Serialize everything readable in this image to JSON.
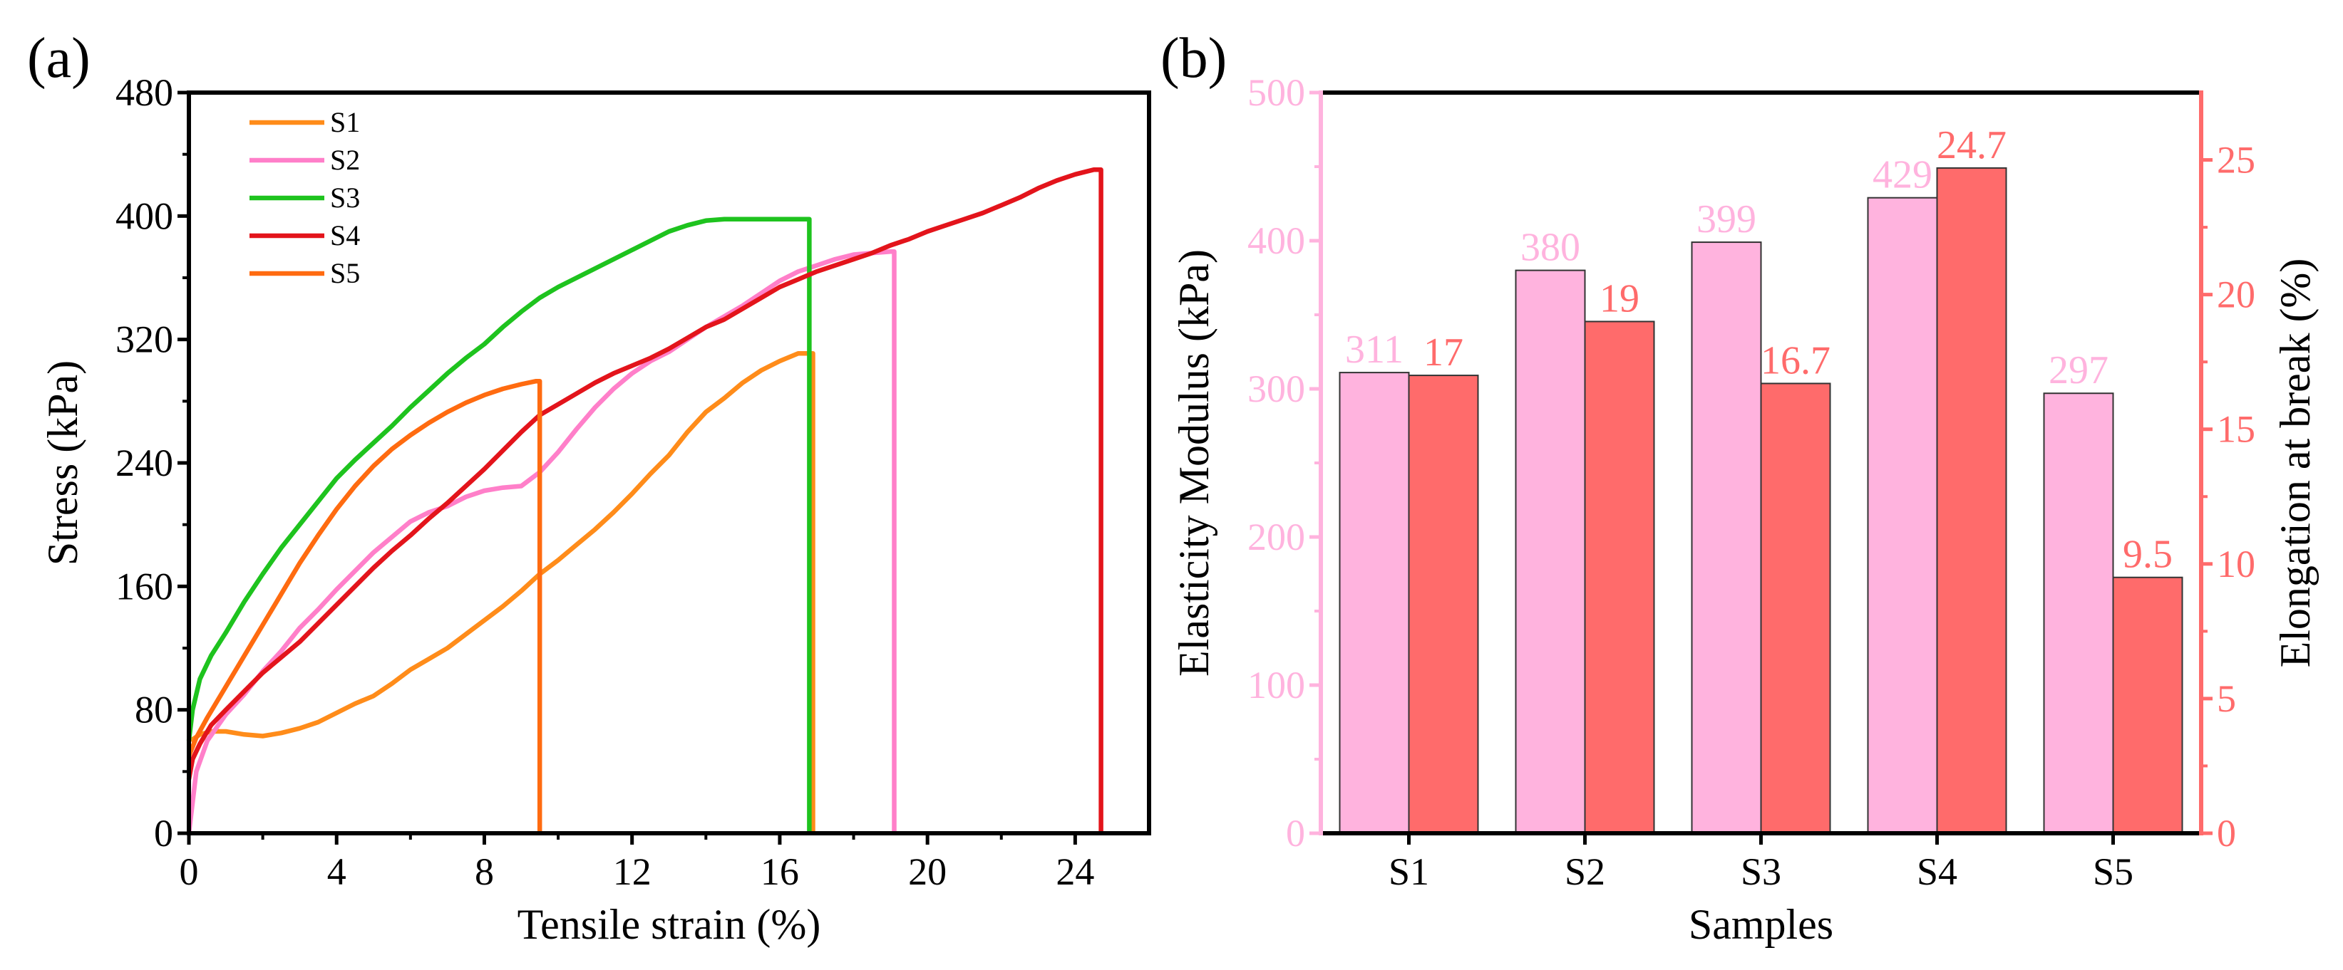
{
  "chart_data": [
    {
      "panel_label": "(a)",
      "type": "line",
      "title": "",
      "xlabel": "Tensile strain (%)",
      "ylabel": "Stress (kPa)",
      "xlim": [
        0,
        26
      ],
      "ylim": [
        0,
        480
      ],
      "xticks": [
        0,
        4,
        8,
        12,
        16,
        20,
        24
      ],
      "yticks": [
        0,
        80,
        160,
        240,
        320,
        400,
        480
      ],
      "grid": false,
      "legend_position": "top-left",
      "series": [
        {
          "name": "S1",
          "color": "#ff8c1a",
          "x": [
            0.05,
            0.3,
            0.6,
            1,
            1.5,
            2,
            2.5,
            3,
            3.5,
            4,
            4.5,
            5,
            5.5,
            6,
            6.5,
            7,
            7.5,
            8,
            8.5,
            9,
            9.5,
            10,
            10.5,
            11,
            11.5,
            12,
            12.5,
            13,
            13.5,
            14,
            14.5,
            15,
            15.5,
            16,
            16.5,
            16.9,
            16.9
          ],
          "y": [
            60,
            64,
            66,
            66,
            64,
            63,
            65,
            68,
            72,
            78,
            84,
            89,
            97,
            106,
            113,
            120,
            129,
            138,
            147,
            157,
            168,
            177,
            187,
            197,
            208,
            220,
            233,
            245,
            260,
            273,
            282,
            292,
            300,
            306,
            311,
            311,
            0
          ]
        },
        {
          "name": "S2",
          "color": "#ff7fc9",
          "x": [
            0,
            0.2,
            0.5,
            1,
            1.5,
            2,
            2.5,
            3,
            3.5,
            4,
            4.5,
            5,
            5.5,
            6,
            6.5,
            7,
            7.5,
            8,
            8.5,
            9,
            9.5,
            10,
            10.5,
            11,
            11.5,
            12,
            12.5,
            13,
            13.5,
            14,
            14.5,
            15,
            15.5,
            16,
            16.5,
            17,
            17.5,
            18,
            18.5,
            19,
            19.1,
            19.1
          ],
          "y": [
            0,
            40,
            60,
            77,
            90,
            105,
            118,
            133,
            145,
            158,
            170,
            182,
            192,
            202,
            208,
            212,
            218,
            222,
            224,
            225,
            234,
            247,
            262,
            276,
            288,
            298,
            306,
            312,
            320,
            328,
            335,
            342,
            350,
            358,
            364,
            368,
            372,
            375,
            376,
            377,
            377,
            0
          ]
        },
        {
          "name": "S3",
          "color": "#1ec31e",
          "x": [
            0,
            0.1,
            0.3,
            0.6,
            1,
            1.5,
            2,
            2.5,
            3,
            3.5,
            4,
            4.5,
            5,
            5.5,
            6,
            6.5,
            7,
            7.5,
            8,
            8.5,
            9,
            9.5,
            10,
            10.5,
            11,
            11.5,
            12,
            12.5,
            13,
            13.5,
            14,
            14.5,
            15,
            15.5,
            16,
            16.5,
            16.8,
            16.8
          ],
          "y": [
            60,
            80,
            100,
            115,
            130,
            150,
            168,
            185,
            200,
            215,
            230,
            242,
            253,
            264,
            276,
            287,
            298,
            308,
            317,
            328,
            338,
            347,
            354,
            360,
            366,
            372,
            378,
            384,
            390,
            394,
            397,
            398,
            398,
            398,
            398,
            398,
            398,
            0
          ]
        },
        {
          "name": "S4",
          "color": "#e3141b",
          "x": [
            0,
            0.1,
            0.3,
            0.6,
            1,
            1.5,
            2,
            2.5,
            3,
            3.5,
            4,
            4.5,
            5,
            5.5,
            6,
            6.5,
            7,
            7.5,
            8,
            8.5,
            9,
            9.5,
            10,
            10.5,
            11,
            11.5,
            12,
            12.5,
            13,
            13.5,
            14,
            14.5,
            15,
            15.5,
            16,
            16.5,
            17,
            17.5,
            18,
            18.5,
            19,
            19.5,
            20,
            20.5,
            21,
            21.5,
            22,
            22.5,
            23,
            23.5,
            24,
            24.5,
            24.7,
            24.7
          ],
          "y": [
            35,
            48,
            58,
            70,
            80,
            92,
            104,
            114,
            124,
            136,
            148,
            160,
            172,
            183,
            193,
            204,
            214,
            225,
            236,
            248,
            260,
            271,
            278,
            285,
            292,
            298,
            303,
            308,
            314,
            321,
            328,
            333,
            340,
            347,
            354,
            359,
            364,
            368,
            372,
            376,
            381,
            385,
            390,
            394,
            398,
            402,
            407,
            412,
            418,
            423,
            427,
            430,
            430,
            0
          ]
        },
        {
          "name": "S5",
          "color": "#ff6b10",
          "x": [
            0,
            0.2,
            0.5,
            1,
            1.5,
            2,
            2.5,
            3,
            3.5,
            4,
            4.5,
            5,
            5.5,
            6,
            6.5,
            7,
            7.5,
            8,
            8.5,
            9,
            9.4,
            9.5,
            9.5
          ],
          "y": [
            50,
            62,
            75,
            95,
            115,
            135,
            155,
            175,
            193,
            210,
            225,
            238,
            249,
            258,
            266,
            273,
            279,
            284,
            288,
            291,
            293,
            293,
            0
          ]
        }
      ]
    },
    {
      "panel_label": "(b)",
      "type": "bar",
      "title": "",
      "xlabel": "Samples",
      "ylabel": "Elasticity Modulus (kPa)",
      "ylabel_right": "Elongation at break (%)",
      "categories": [
        "S1",
        "S2",
        "S3",
        "S4",
        "S5"
      ],
      "ylim": [
        0,
        500
      ],
      "ylim_right": [
        0,
        27.5
      ],
      "yticks": [
        0,
        100,
        200,
        300,
        400,
        500
      ],
      "yticks_right": [
        0,
        5,
        10,
        15,
        20,
        25
      ],
      "grid": false,
      "series": [
        {
          "name": "Elasticity Modulus",
          "axis": "left",
          "color": "#ffb3de",
          "values": [
            311,
            380,
            399,
            429,
            297
          ],
          "labels": [
            "311",
            "380",
            "399",
            "429",
            "297"
          ]
        },
        {
          "name": "Elongation at break",
          "axis": "right",
          "color": "#ff6b6b",
          "values": [
            17,
            19,
            16.7,
            24.7,
            9.5
          ],
          "labels": [
            "17",
            "19",
            "16.7",
            "24.7",
            "9.5"
          ]
        }
      ],
      "left_axis_color": "#ffb3de",
      "right_axis_color": "#ff6b6b"
    }
  ]
}
